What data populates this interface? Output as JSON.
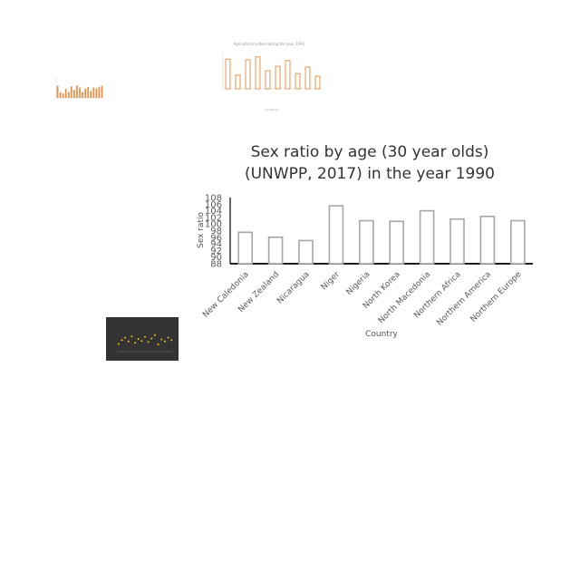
{
  "chart_data": [
    {
      "type": "bar",
      "title": "Sex ratio by age (30 year olds)",
      "subtitle": "(UNWPP, 2017) in the year 1990",
      "xlabel": "Country",
      "ylabel": "Sex ratio",
      "categories": [
        "New Caledonia",
        "New Zealand",
        "Nicaragua",
        "Niger",
        "Nigeria",
        "North Korea",
        "North Macedonia",
        "Northern Africa",
        "Northern America",
        "Northern Europe"
      ],
      "values": [
        97.5,
        96,
        95,
        105.5,
        101,
        100.8,
        104,
        101.5,
        102.3,
        101
      ],
      "ylim": [
        88,
        108
      ],
      "yticks": [
        "88",
        "90",
        "92",
        "94",
        "96",
        "98",
        "100",
        "102",
        "104",
        "106",
        "108"
      ],
      "bar_fill": "#ffffff",
      "bar_stroke": "#a6a6a6",
      "grid": false
    },
    {
      "type": "bar",
      "title": "Agricultural index during the year 1991",
      "xlabel": "Countries",
      "values": [
        82,
        38,
        80,
        88,
        50,
        62,
        78,
        42,
        60,
        35
      ],
      "ylim": [
        0,
        100
      ],
      "color": "#e5944f"
    },
    {
      "type": "bar",
      "values": [
        60,
        28,
        22,
        45,
        30,
        58,
        40,
        62,
        52,
        30,
        46,
        55,
        35,
        52,
        48,
        55,
        60
      ],
      "ylim": [
        0,
        100
      ],
      "color": "#e5944f"
    },
    {
      "type": "scatter",
      "values": [
        30,
        45,
        55,
        40,
        60,
        35,
        50,
        42,
        58,
        38,
        52,
        65,
        28,
        48,
        40,
        55,
        45
      ],
      "ylim": [
        0,
        100
      ],
      "color": "#f0c419",
      "background": "#333333"
    }
  ]
}
